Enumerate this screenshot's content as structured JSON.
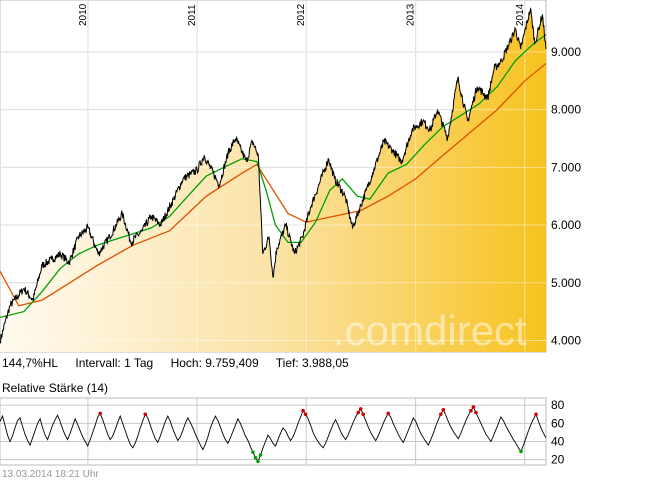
{
  "main_stats": {
    "range": "144,7%HL",
    "interval": "Intervall: 1 Tag",
    "high": "Hoch: 9.759,409",
    "low": "Tief:  3.988,05"
  },
  "rsi_title": "Relative Stärke (14)",
  "timestamp": "13.03.2014 18:21 Uhr",
  "watermark": ".comdirect",
  "colors": {
    "price": "#000000",
    "ma_short": "#00a000",
    "ma_long": "#e05000",
    "fill_light": "#fdf3dc",
    "fill_dark": "#f7c21e"
  },
  "chart_data": [
    {
      "type": "line",
      "title": "",
      "x_tick_labels": [
        "2010",
        "2011",
        "2012",
        "2013",
        "2014"
      ],
      "y_tick_labels": [
        "4.000",
        "5.000",
        "6.000",
        "7.000",
        "8.000",
        "9.000"
      ],
      "ylim": [
        3800,
        9900
      ],
      "xlim": [
        "2009-03-13",
        "2014-03-13"
      ],
      "grid": true,
      "series": [
        {
          "role": "price",
          "points": [
            [
              "2009-03-13",
              3990
            ],
            [
              "2009-04-15",
              4600
            ],
            [
              "2009-06-01",
              4900
            ],
            [
              "2009-07-01",
              4700
            ],
            [
              "2009-08-01",
              5300
            ],
            [
              "2009-09-01",
              5400
            ],
            [
              "2009-10-01",
              5500
            ],
            [
              "2009-10-30",
              5350
            ],
            [
              "2009-12-01",
              5800
            ],
            [
              "2010-01-01",
              5950
            ],
            [
              "2010-02-05",
              5500
            ],
            [
              "2010-03-15",
              5800
            ],
            [
              "2010-04-26",
              6200
            ],
            [
              "2010-05-25",
              5700
            ],
            [
              "2010-07-01",
              5900
            ],
            [
              "2010-08-01",
              6150
            ],
            [
              "2010-09-01",
              6000
            ],
            [
              "2010-10-15",
              6450
            ],
            [
              "2010-11-15",
              6800
            ],
            [
              "2011-01-01",
              6950
            ],
            [
              "2011-01-25",
              7200
            ],
            [
              "2011-03-16",
              6700
            ],
            [
              "2011-04-15",
              7250
            ],
            [
              "2011-05-10",
              7500
            ],
            [
              "2011-06-15",
              7100
            ],
            [
              "2011-07-05",
              7450
            ],
            [
              "2011-07-25",
              7200
            ],
            [
              "2011-08-09",
              5500
            ],
            [
              "2011-08-30",
              5800
            ],
            [
              "2011-09-12",
              5100
            ],
            [
              "2011-09-25",
              5600
            ],
            [
              "2011-10-25",
              6000
            ],
            [
              "2011-11-23",
              5500
            ],
            [
              "2011-12-20",
              5800
            ],
            [
              "2012-01-15",
              6300
            ],
            [
              "2012-03-16",
              7150
            ],
            [
              "2012-04-05",
              6800
            ],
            [
              "2012-05-10",
              6500
            ],
            [
              "2012-06-04",
              5950
            ],
            [
              "2012-07-20",
              6600
            ],
            [
              "2012-08-10",
              6900
            ],
            [
              "2012-09-17",
              7450
            ],
            [
              "2012-10-15",
              7300
            ],
            [
              "2012-11-15",
              7100
            ],
            [
              "2012-12-20",
              7650
            ],
            [
              "2013-01-25",
              7800
            ],
            [
              "2013-02-20",
              7650
            ],
            [
              "2013-03-15",
              8000
            ],
            [
              "2013-04-18",
              7500
            ],
            [
              "2013-05-22",
              8550
            ],
            [
              "2013-06-24",
              7800
            ],
            [
              "2013-07-26",
              8400
            ],
            [
              "2013-08-30",
              8200
            ],
            [
              "2013-09-20",
              8700
            ],
            [
              "2013-10-15",
              8850
            ],
            [
              "2013-11-15",
              9200
            ],
            [
              "2013-12-01",
              9400
            ],
            [
              "2013-12-18",
              9050
            ],
            [
              "2014-01-20",
              9750
            ],
            [
              "2014-02-04",
              9150
            ],
            [
              "2014-03-01",
              9650
            ],
            [
              "2014-03-13",
              9050
            ]
          ]
        },
        {
          "role": "ma_short",
          "points": [
            [
              "2009-03-13",
              4400
            ],
            [
              "2009-06-01",
              4500
            ],
            [
              "2009-08-01",
              4850
            ],
            [
              "2009-10-01",
              5250
            ],
            [
              "2009-12-01",
              5500
            ],
            [
              "2010-02-01",
              5650
            ],
            [
              "2010-04-01",
              5750
            ],
            [
              "2010-06-01",
              5850
            ],
            [
              "2010-08-01",
              5950
            ],
            [
              "2010-10-01",
              6150
            ],
            [
              "2010-12-01",
              6500
            ],
            [
              "2011-02-01",
              6850
            ],
            [
              "2011-04-01",
              7000
            ],
            [
              "2011-06-01",
              7150
            ],
            [
              "2011-07-20",
              7100
            ],
            [
              "2011-08-20",
              6600
            ],
            [
              "2011-09-20",
              6000
            ],
            [
              "2011-11-01",
              5700
            ],
            [
              "2011-12-15",
              5700
            ],
            [
              "2012-02-01",
              6050
            ],
            [
              "2012-03-20",
              6600
            ],
            [
              "2012-05-01",
              6800
            ],
            [
              "2012-06-20",
              6500
            ],
            [
              "2012-08-01",
              6450
            ],
            [
              "2012-10-01",
              6900
            ],
            [
              "2012-12-01",
              7050
            ],
            [
              "2013-02-01",
              7400
            ],
            [
              "2013-04-01",
              7700
            ],
            [
              "2013-06-01",
              7900
            ],
            [
              "2013-08-01",
              8100
            ],
            [
              "2013-10-01",
              8400
            ],
            [
              "2013-12-01",
              8850
            ],
            [
              "2014-02-01",
              9150
            ],
            [
              "2014-03-13",
              9300
            ]
          ]
        },
        {
          "role": "ma_long",
          "points": [
            [
              "2009-03-13",
              5200
            ],
            [
              "2009-05-15",
              4600
            ],
            [
              "2009-08-01",
              4700
            ],
            [
              "2009-11-01",
              5000
            ],
            [
              "2010-02-01",
              5300
            ],
            [
              "2010-06-01",
              5650
            ],
            [
              "2010-10-01",
              5900
            ],
            [
              "2011-02-01",
              6500
            ],
            [
              "2011-06-01",
              6900
            ],
            [
              "2011-07-20",
              7050
            ],
            [
              "2011-09-01",
              6700
            ],
            [
              "2011-11-01",
              6200
            ],
            [
              "2012-01-01",
              6050
            ],
            [
              "2012-04-01",
              6150
            ],
            [
              "2012-07-01",
              6250
            ],
            [
              "2012-10-01",
              6500
            ],
            [
              "2013-01-01",
              6800
            ],
            [
              "2013-04-01",
              7200
            ],
            [
              "2013-07-01",
              7600
            ],
            [
              "2013-10-01",
              8000
            ],
            [
              "2014-01-01",
              8500
            ],
            [
              "2014-03-13",
              8800
            ]
          ]
        }
      ]
    },
    {
      "type": "line",
      "title": "Relative Stärke (14)",
      "y_tick_labels": [
        "20",
        "40",
        "60",
        "80"
      ],
      "ylim": [
        14,
        88
      ],
      "xlim": [
        "2009-03-13",
        "2014-03-13"
      ],
      "grid": true,
      "overbought": 70,
      "oversold": 30,
      "series": [
        {
          "role": "rsi",
          "values": [
            62,
            68,
            58,
            47,
            40,
            46,
            55,
            63,
            66,
            57,
            48,
            41,
            36,
            44,
            52,
            60,
            65,
            55,
            47,
            42,
            50,
            58,
            64,
            69,
            62,
            54,
            47,
            42,
            49,
            57,
            65,
            59,
            52,
            45,
            40,
            35,
            42,
            50,
            58,
            67,
            71,
            64,
            56,
            48,
            42,
            46,
            53,
            61,
            68,
            60,
            52,
            44,
            37,
            33,
            38,
            46,
            55,
            63,
            70,
            66,
            58,
            50,
            43,
            39,
            46,
            54,
            62,
            68,
            62,
            54,
            47,
            41,
            45,
            52,
            60,
            66,
            61,
            55,
            48,
            42,
            36,
            31,
            37,
            45,
            55,
            62,
            68,
            63,
            56,
            48,
            42,
            38,
            44,
            51,
            58,
            65,
            60,
            53,
            46,
            41,
            34,
            28,
            22,
            18,
            25,
            33,
            40,
            47,
            43,
            38,
            35,
            42,
            49,
            55,
            52,
            46,
            41,
            45,
            52,
            60,
            67,
            74,
            70,
            65,
            58,
            50,
            44,
            40,
            36,
            33,
            38,
            45,
            52,
            59,
            64,
            58,
            51,
            46,
            42,
            47,
            54,
            61,
            67,
            72,
            76,
            70,
            63,
            56,
            50,
            45,
            41,
            46,
            53,
            60,
            66,
            71,
            67,
            60,
            54,
            48,
            43,
            39,
            45,
            52,
            59,
            66,
            62,
            55,
            49,
            44,
            40,
            36,
            42,
            49,
            57,
            64,
            70,
            75,
            69,
            62,
            56,
            51,
            47,
            43,
            49,
            56,
            63,
            69,
            74,
            78,
            72,
            66,
            60,
            54,
            48,
            44,
            40,
            46,
            53,
            60,
            67,
            63,
            57,
            52,
            47,
            42,
            38,
            33,
            29,
            36,
            44,
            52,
            59,
            65,
            70,
            62,
            55,
            49,
            44
          ]
        }
      ]
    }
  ]
}
